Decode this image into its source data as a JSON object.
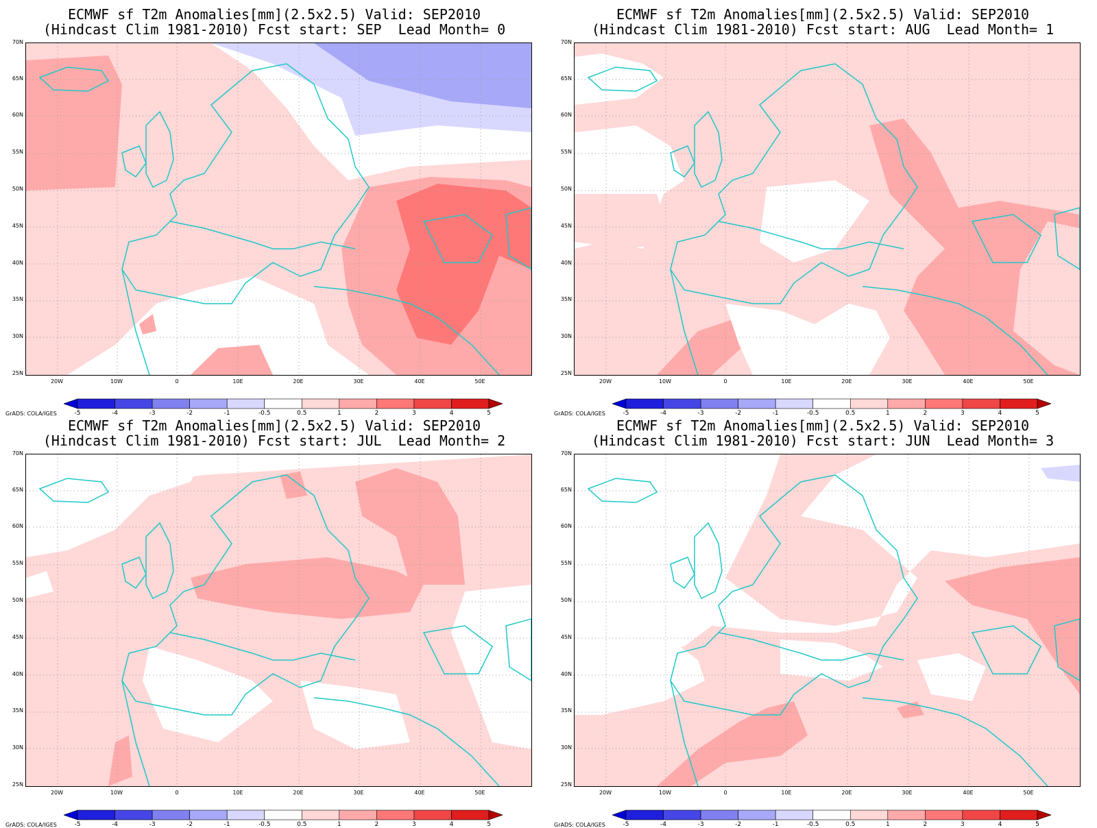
{
  "panels": [
    {
      "title_line1": "ECMWF sf T2m Anomalies[mm](2.5x2.5) Valid: SEP2010",
      "title_line2": "(Hindcast Clim 1981-2010) Fcst start: SEP  Lead Month= 0"
    },
    {
      "title_line1": "ECMWF sf T2m Anomalies[mm](2.5x2.5) Valid: SEP2010",
      "title_line2": "(Hindcast Clim 1981-2010) Fcst start: AUG  Lead Month= 1"
    },
    {
      "title_line1": "ECMWF sf T2m Anomalies[mm](2.5x2.5) Valid: SEP2010",
      "title_line2": "(Hindcast Clim 1981-2010) Fcst start: JUL  Lead Month= 2"
    },
    {
      "title_line1": "ECMWF sf T2m Anomalies[mm](2.5x2.5) Valid: SEP2010",
      "title_line2": "(Hindcast Clim 1981-2010) Fcst start: JUN  Lead Month= 3"
    }
  ],
  "lat_labels": [
    "70N",
    "65N",
    "60N",
    "55N",
    "50N",
    "45N",
    "40N",
    "35N",
    "30N",
    "25N"
  ],
  "lon_labels": [
    "20W",
    "10W",
    "0",
    "10E",
    "20E",
    "30E",
    "40E",
    "50E"
  ],
  "colorbar": {
    "labels": [
      "-5",
      "-4",
      "-3",
      "-2",
      "-1",
      "-0.5",
      "0.5",
      "1",
      "2",
      "3",
      "4",
      "5"
    ],
    "colors": [
      "#0000d8",
      "#1e1edc",
      "#4646e6",
      "#8080f0",
      "#a8a8f8",
      "#d8d8ff",
      "#ffffff",
      "#ffd8d8",
      "#ffaaaa",
      "#ff7878",
      "#f04646",
      "#e01e1e",
      "#b40000"
    ]
  },
  "credit": "GrADS: COLA/IGES"
}
